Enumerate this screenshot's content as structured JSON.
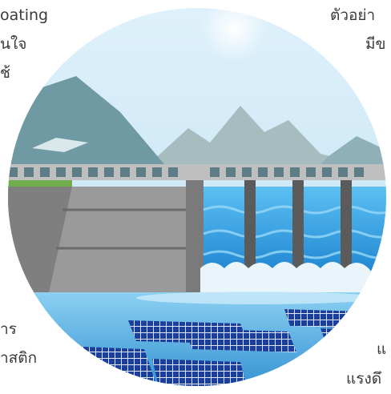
{
  "text_fragments": {
    "top_left_1": "oating",
    "top_left_2": "นใจ",
    "top_left_3": "ช้",
    "top_right_1": "ตัวอย่า",
    "top_right_2": "มีข",
    "bottom_left_1": "าร",
    "bottom_left_2": "าสติก",
    "bottom_right_1": "แ",
    "bottom_right_2": "แรงดึ"
  },
  "illustration": {
    "subject": "hydroelectric dam with floating solar panels",
    "colors": {
      "sky": "#cfe8f5",
      "mountain_far": "#9fb6b9",
      "mountain_near": "#6f9aa3",
      "dam_wall": "#8d8d8d",
      "dam_dark": "#6d6d6d",
      "spillway_water": "#3aa6e6",
      "foam": "#e8f4fb",
      "reservoir": "#2f95d6",
      "solar_panel": "#1b3f9c",
      "solar_grid": "#e9eef7"
    }
  }
}
